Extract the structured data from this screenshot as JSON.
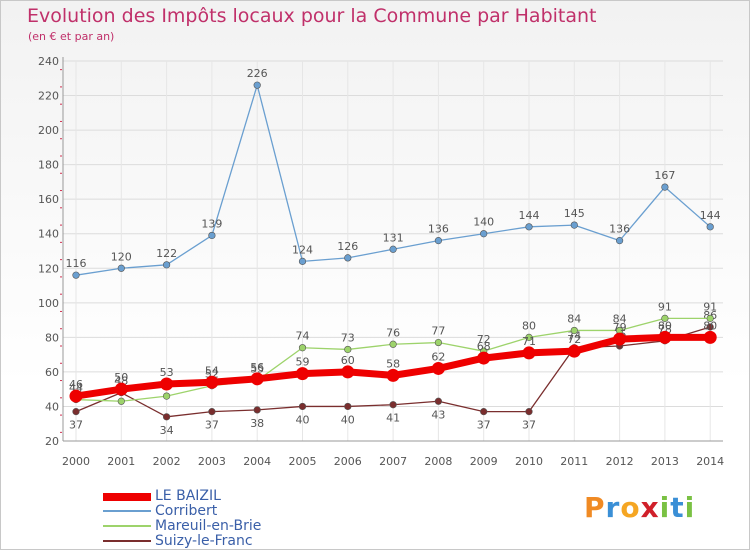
{
  "title": "Evolution des Impôts locaux pour la Commune par Habitant",
  "subtitle": "(en € et par an)",
  "logo": {
    "letters": [
      {
        "ch": "P",
        "color": "#f08a24"
      },
      {
        "ch": "r",
        "color": "#3a8fd6"
      },
      {
        "ch": "o",
        "color": "#f5a623"
      },
      {
        "ch": "x",
        "color": "#d0202a"
      },
      {
        "ch": "i",
        "color": "#7ac143"
      },
      {
        "ch": "t",
        "color": "#3a8fd6"
      },
      {
        "ch": "i",
        "color": "#7ac143"
      }
    ]
  },
  "legend": [
    {
      "label": "LE BAIZIL",
      "color": "#ee0000"
    },
    {
      "label": "Corribert",
      "color": "#6a9fd0"
    },
    {
      "label": "Mareuil-en-Brie",
      "color": "#9dd36b"
    },
    {
      "label": "Suizy-le-Franc",
      "color": "#7a2e2e"
    }
  ],
  "chart_data": {
    "type": "line",
    "categories": [
      "2000",
      "2001",
      "2002",
      "2003",
      "2004",
      "2005",
      "2006",
      "2007",
      "2008",
      "2009",
      "2010",
      "2011",
      "2012",
      "2013",
      "2014"
    ],
    "ylim": [
      20,
      240
    ],
    "yticks": [
      20,
      40,
      60,
      80,
      100,
      120,
      140,
      160,
      180,
      200,
      220,
      240
    ],
    "grid": true,
    "series": [
      {
        "name": "Suizy-le-Franc",
        "color": "#7a2e2e",
        "values": [
          37,
          48,
          34,
          37,
          38,
          40,
          40,
          41,
          43,
          37,
          37,
          74,
          75,
          78,
          86
        ]
      },
      {
        "name": "Mareuil-en-Brie",
        "color": "#9dd36b",
        "values": [
          44,
          43,
          46,
          52,
          55,
          74,
          73,
          76,
          77,
          72,
          80,
          84,
          84,
          91,
          91
        ]
      },
      {
        "name": "Corribert",
        "color": "#6a9fd0",
        "values": [
          116,
          120,
          122,
          139,
          226,
          124,
          126,
          131,
          136,
          140,
          144,
          145,
          136,
          167,
          144
        ]
      },
      {
        "name": "LE BAIZIL",
        "color": "#ee0000",
        "values": [
          46,
          50,
          53,
          54,
          56,
          59,
          60,
          58,
          62,
          68,
          71,
          72,
          79,
          80,
          80
        ]
      }
    ]
  }
}
